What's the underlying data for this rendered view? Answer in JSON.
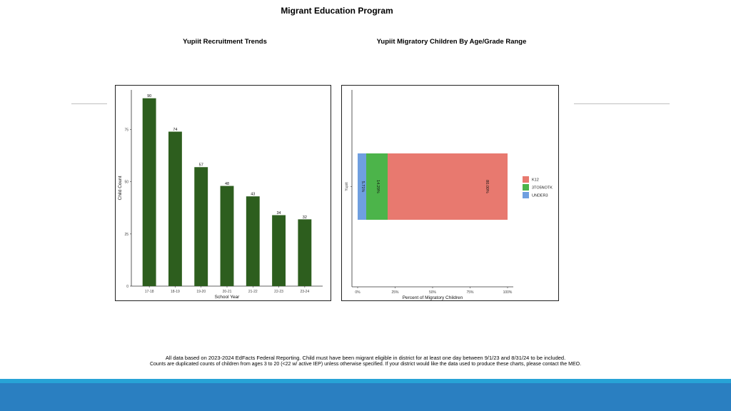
{
  "page": {
    "title": "Migrant Education Program",
    "footnote_line1": "All data based on 2023-2024 EdFacts Federal Reporting. Child must have been migrant eligible in district for at least one day between 9/1/23 and 8/31/24 to be included.",
    "footnote_line2": "Counts are duplicated counts of children from ages 3 to 20 (<22 w/ active IEP) unless otherwise specified. If your district would like the data used to produce these charts, please contact the MEO.",
    "colors": {
      "footer_bar": "#2a7fc1",
      "footer_bar_thin": "#27a3d6"
    }
  },
  "chart_data": [
    {
      "type": "bar",
      "title": "Yupiit Recruitment Trends",
      "xlabel": "School Year",
      "ylabel": "Child Count",
      "categories": [
        "17-18",
        "18-19",
        "19-20",
        "20-21",
        "21-22",
        "22-23",
        "23-24"
      ],
      "values": [
        90,
        74,
        57,
        48,
        43,
        34,
        32
      ],
      "data_labels": [
        "90",
        "74",
        "57",
        "48",
        "43",
        "34",
        "32"
      ],
      "yticks": [
        "0",
        "25",
        "50",
        "75"
      ],
      "ytick_values": [
        0,
        25,
        50,
        75
      ],
      "ylim": [
        0,
        94
      ],
      "grid": false,
      "color": "#2d5e1e"
    },
    {
      "type": "bar",
      "orientation": "horizontal-stacked",
      "title": "Yupiit Migratory Children By Age/Grade Range",
      "xlabel": "Percent of Migratory Children",
      "ylabel": "",
      "categories": [
        "Yupiit"
      ],
      "series": [
        {
          "name": "UNDER3",
          "values": [
            5.71
          ],
          "label": "5.71%",
          "color": "#6f9fe0"
        },
        {
          "name": "3TO5NOTK",
          "values": [
            14.29
          ],
          "label": "14.29%",
          "color": "#4cb44a"
        },
        {
          "name": "K12",
          "values": [
            80.0
          ],
          "label": "80.00%",
          "color": "#e8796f"
        }
      ],
      "xticks": [
        "0%",
        "25%",
        "50%",
        "75%",
        "100%"
      ],
      "xtick_values": [
        0,
        25,
        50,
        75,
        100
      ],
      "xlim": [
        0,
        100
      ],
      "legend": [
        "K12",
        "3TO5NOTK",
        "UNDER3"
      ],
      "legend_position": "right",
      "grid": false
    }
  ]
}
